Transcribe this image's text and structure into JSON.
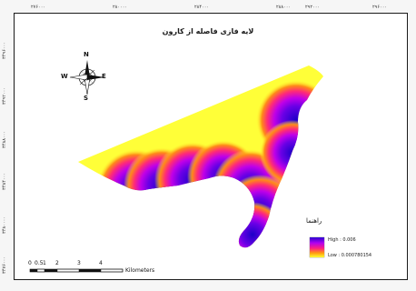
{
  "map": {
    "title": "لایه فازی فاصله از کارون"
  },
  "top_ticks": [
    "۲۷۶۰۰۰",
    "۲۸۰۰۰۰",
    "۲۸۴۰۰۰",
    "۲۸۸۰۰۰",
    "۲۹۲۰۰۰",
    "۲۹۶۰۰۰"
  ],
  "left_ticks": [
    "۳۴۹۶۰۰۰",
    "۳۴۹۲۰۰۰",
    "۳۴۸۸۰۰۰",
    "۳۴۸۴۰۰۰",
    "۳۴۸۰۰۰۰",
    "۳۴۷۶۰۰۰"
  ],
  "compass": {
    "n": "N",
    "s": "S",
    "e": "E",
    "w": "W"
  },
  "legend": {
    "title": "راهنما",
    "high_label": "High : 0.006",
    "low_label": "Low : 0.000780154",
    "high_color": "#2a00d0",
    "low_color": "#ffff30"
  },
  "scale_bar": {
    "labels": [
      "0",
      "0.5",
      "1",
      "2",
      "3",
      "4"
    ],
    "unit": "Kilometers"
  }
}
